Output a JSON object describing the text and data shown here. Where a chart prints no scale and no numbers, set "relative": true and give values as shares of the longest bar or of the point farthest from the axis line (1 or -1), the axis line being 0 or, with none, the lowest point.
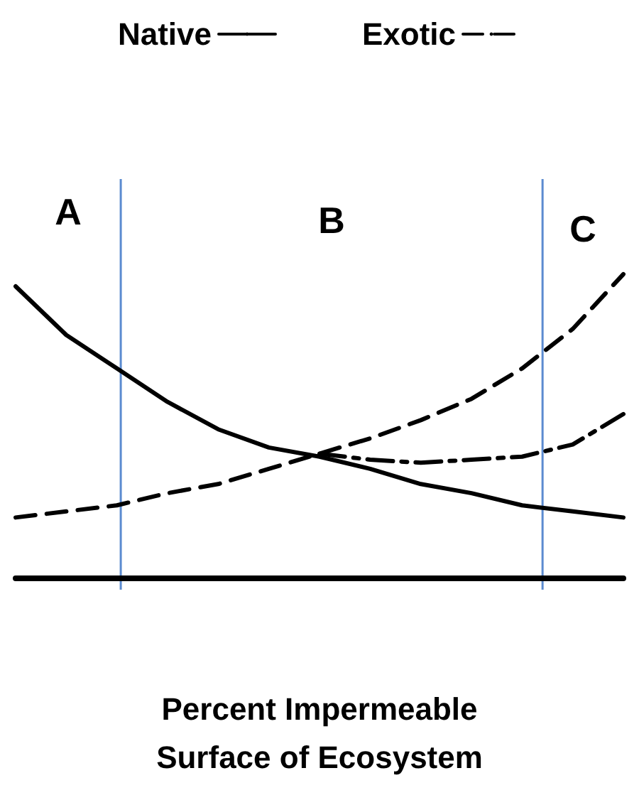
{
  "chart_data": {
    "type": "line",
    "relative": true,
    "xlabel": "Percent Impermeable Surface of Ecosystem",
    "categories": [
      null,
      null,
      null,
      null,
      null,
      null,
      null,
      null,
      null,
      null,
      null,
      null,
      null
    ],
    "grid": false,
    "legend": "top",
    "marker": "none",
    "annotations": [
      "A",
      "B",
      "C"
    ],
    "series": [
      {
        "name": "Native",
        "color": "#000000",
        "line_style": "solid",
        "values": [
          0.96,
          0.8,
          0.69,
          0.58,
          0.49,
          0.43,
          0.4,
          0.36,
          0.31,
          0.28,
          0.24,
          0.22,
          0.2
        ]
      },
      {
        "name": "Exotic",
        "color": "#000000",
        "line_style": "dashed",
        "values": [
          0.2,
          0.22,
          0.24,
          0.28,
          0.31,
          0.36,
          0.41,
          0.46,
          0.52,
          0.59,
          0.69,
          0.82,
          1
        ]
      },
      {
        "color": "#000000",
        "line_style": "dashdot",
        "values": [
          null,
          null,
          null,
          null,
          null,
          null,
          0.41,
          0.39,
          0.38,
          0.39,
          0.4,
          0.44,
          0.54
        ]
      }
    ]
  }
}
